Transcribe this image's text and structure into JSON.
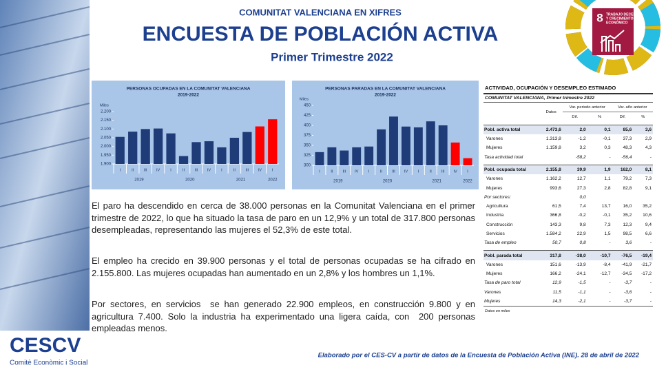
{
  "header": {
    "kicker": "COMUNITAT VALENCIANA EN XIFRES",
    "title": "ENCUESTA DE POBLACIÓN ACTIVA",
    "subtitle": "Primer Trimestre 2022"
  },
  "sdg": {
    "number": "8",
    "lines": [
      "TRABAJO DECENTE",
      "Y CRECIMIENTO",
      "ECONÓMICO"
    ]
  },
  "chart_data": [
    {
      "type": "bar",
      "title": "PERSONAS OCUPADAS EN LA COMUNITAT VALENCIANA",
      "subtitle": "2019-2022",
      "ylabel": "Miles",
      "categories": [
        "I",
        "II",
        "III",
        "IV",
        "I",
        "II",
        "III",
        "IV",
        "I",
        "II",
        "III",
        "IV",
        "I"
      ],
      "groups": [
        "2019",
        "2020",
        "2021",
        "2022"
      ],
      "values": [
        2055,
        2085,
        2100,
        2103,
        2075,
        1945,
        2025,
        2030,
        1995,
        2050,
        2083,
        2115,
        2155.8
      ],
      "colors": [
        "#1f3c78",
        "#1f3c78",
        "#1f3c78",
        "#1f3c78",
        "#1f3c78",
        "#1f3c78",
        "#1f3c78",
        "#1f3c78",
        "#1f3c78",
        "#1f3c78",
        "#1f3c78",
        "#ff0000",
        "#ff0000"
      ],
      "ylim": [
        1900,
        2200
      ],
      "yticks": [
        {
          "value": 1900,
          "label": "1.900"
        },
        {
          "value": 1950,
          "label": "1.950"
        },
        {
          "value": 2000,
          "label": "2.000"
        },
        {
          "value": 2050,
          "label": "2.050"
        },
        {
          "value": 2100,
          "label": "2.100"
        },
        {
          "value": 2150,
          "label": "2.150"
        },
        {
          "value": 2200,
          "label": "2.200"
        }
      ]
    },
    {
      "type": "bar",
      "title": "PERSONAS PARADAS EN LA COMUNITAT VALENCIANA",
      "subtitle": "2019-2022",
      "ylabel": "Miles",
      "categories": [
        "I",
        "II",
        "III",
        "IV",
        "I",
        "II",
        "III",
        "IV",
        "I",
        "II",
        "III",
        "IV",
        "I"
      ],
      "groups": [
        "2019",
        "2020",
        "2021",
        "2022"
      ],
      "values": [
        333,
        345,
        337,
        345,
        347,
        390,
        422,
        397,
        395,
        410,
        400,
        357,
        317.8
      ],
      "colors": [
        "#1f3c78",
        "#1f3c78",
        "#1f3c78",
        "#1f3c78",
        "#1f3c78",
        "#1f3c78",
        "#1f3c78",
        "#1f3c78",
        "#1f3c78",
        "#1f3c78",
        "#1f3c78",
        "#ff0000",
        "#ff0000"
      ],
      "ylim": [
        300,
        450
      ],
      "yticks": [
        300,
        325,
        350,
        375,
        400,
        425,
        450
      ]
    }
  ],
  "paragraphs": [
    "El paro ha descendido en cerca de 38.000 personas en la Comunitat Valenciana en el primer trimestre de 2022, lo que ha situado la tasa de paro en un 12,9% y un total de 317.800 personas desempleadas, representando las mujeres el 52,3% de este total.",
    "El empleo ha crecido en 39.900 personas y el total de personas ocupadas se ha cifrado en 2.155.800. Las mujeres ocupadas han aumentado en un 2,8% y los hombres un 1,1%.",
    "Por sectores, en servicios  se han generado 22.900 empleos, en construcción 9.800 y en agricultura 7.400. Solo la industria ha experimentado una ligera caída, con  200 personas empleadas menos."
  ],
  "table": {
    "title": "ACTIVIDAD, OCUPACIÓN Y DESEMPLEO ESTIMADO",
    "subtitle": "COMUNITAT  VALENCIANA, Primer trimestre 2022",
    "col_data": "Datos",
    "group1": "Var. periodo anterior",
    "group2": "Var. año anterior",
    "sub": [
      "Dif.",
      "%",
      "Dif.",
      "%"
    ],
    "rows": [
      [
        "Pobl. activa total",
        "2.473,6",
        "2,0",
        "0,1",
        "85,6",
        "3,6"
      ],
      [
        "Varones",
        "1.313,8",
        "-1,2",
        "-0,1",
        "37,3",
        "2,9"
      ],
      [
        "Mujeres",
        "1.159,8",
        "3,2",
        "0,3",
        "48,3",
        "4,3"
      ],
      [
        "Tasa actividad total",
        "",
        "-58,2",
        "-",
        "-56,4",
        "-"
      ],
      [
        "Pobl. ocupada total",
        "2.155,8",
        "39,9",
        "1,9",
        "162,0",
        "8,1"
      ],
      [
        "Varones",
        "1.162,2",
        "12,7",
        "1,1",
        "79,2",
        "7,3"
      ],
      [
        "Mujeres",
        "993,6",
        "27,3",
        "2,8",
        "82,8",
        "9,1"
      ],
      [
        "Por sectores:",
        "",
        "0,0",
        "",
        "",
        ""
      ],
      [
        "Agricultura",
        "61,5",
        "7,4",
        "13,7",
        "16,0",
        "35,2"
      ],
      [
        "Industria",
        "366,8",
        "-0,2",
        "-0,1",
        "35,2",
        "10,6"
      ],
      [
        "Construcción",
        "143,3",
        "9,8",
        "7,3",
        "12,3",
        "9,4"
      ],
      [
        "Servicios",
        "1.584,2",
        "22,9",
        "1,5",
        "98,5",
        "6,6"
      ],
      [
        "Tasa de empleo",
        "50,7",
        "0,8",
        "-",
        "3,6",
        "-"
      ],
      [
        "Pobl. parada total",
        "317,8",
        "-38,0",
        "-10,7",
        "-76,5",
        "-19,4"
      ],
      [
        "Varones",
        "151,6",
        "-13,9",
        "-8,4",
        "-41,9",
        "-21,7"
      ],
      [
        "Mujeres",
        "166,2",
        "-24,1",
        "-12,7",
        "-34,5",
        "-17,2"
      ],
      [
        "Tasa de paro total",
        "12,9",
        "-1,5",
        "-",
        "-3,7",
        "-"
      ],
      [
        "Varones",
        "11,5",
        "-1,1",
        "-",
        "-3,6",
        "-"
      ],
      [
        "Mujeres",
        "14,3",
        "-2,1",
        "-",
        "-3,7",
        "-"
      ]
    ],
    "note": "Datos en miles"
  },
  "logo": {
    "name": "CESCV",
    "caption": "Comitè Econòmic i Social"
  },
  "footer": "Elaborado por el CES-CV a partir de datos de la Encuesta de Población Activa (INE). 28 de abril de 2022"
}
